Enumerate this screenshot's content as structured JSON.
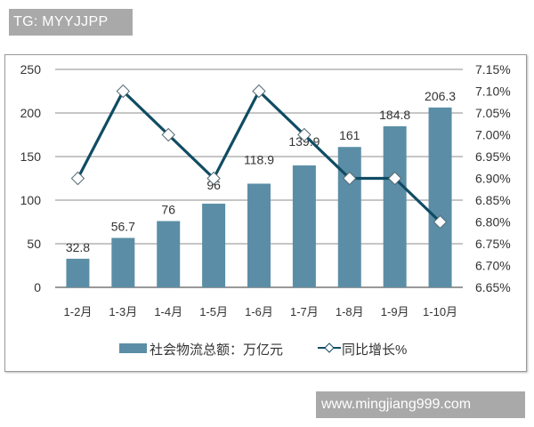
{
  "watermarks": {
    "top": "TG: MYYJJPP",
    "bottom": "www.mingjiang999.com"
  },
  "colors": {
    "bar": "#5b8ea6",
    "line": "#0f4c63",
    "marker_fill": "#ffffff",
    "grid": "#8c8c8c"
  },
  "legend": {
    "bar_label": "社会物流总额：万亿元",
    "line_label": "同比增长%"
  },
  "chart_data": {
    "type": "bar",
    "title": "",
    "xlabel": "",
    "ylabel": "",
    "categories": [
      "1-2月",
      "1-3月",
      "1-4月",
      "1-5月",
      "1-6月",
      "1-7月",
      "1-8月",
      "1-9月",
      "1-10月"
    ],
    "series": [
      {
        "name": "社会物流总额：万亿元",
        "type": "bar",
        "axis": "left",
        "values": [
          32.8,
          56.7,
          76,
          96,
          118.9,
          139.9,
          161,
          184.8,
          206.3
        ],
        "labels": [
          "32.8",
          "56.7",
          "76",
          "96",
          "118.9",
          "139.9",
          "161",
          "184.8",
          "206.3"
        ]
      },
      {
        "name": "同比增长%",
        "type": "line",
        "axis": "right",
        "marker": "diamond",
        "values": [
          6.9,
          7.1,
          7.0,
          6.9,
          7.1,
          7.0,
          6.9,
          6.9,
          6.8
        ]
      }
    ],
    "ylim": [
      0,
      250
    ],
    "yticks": [
      "0",
      "50",
      "100",
      "150",
      "200",
      "250"
    ],
    "y2lim": [
      6.65,
      7.15
    ],
    "y2ticks": [
      "6.65%",
      "6.70%",
      "6.75%",
      "6.80%",
      "6.85%",
      "6.90%",
      "6.95%",
      "7.00%",
      "7.05%",
      "7.10%",
      "7.15%"
    ],
    "grid": true,
    "legend_position": "bottom"
  }
}
